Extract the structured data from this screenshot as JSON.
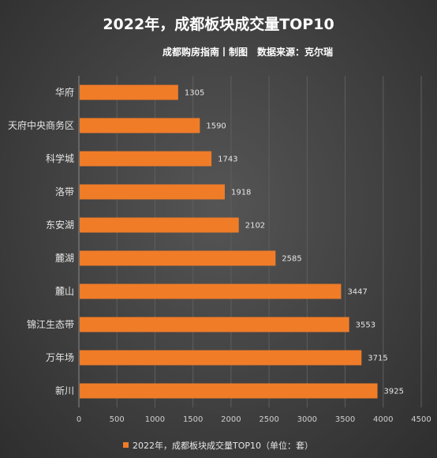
{
  "chart_data": {
    "type": "bar",
    "orientation": "horizontal",
    "title": "2022年，成都板块成交量TOP10",
    "subtitle": "成都购房指南丨制图　数据来源：克尔瑞",
    "categories": [
      "华府",
      "天府中央商务区",
      "科学城",
      "洛带",
      "东安湖",
      "麓湖",
      "麓山",
      "锦江生态带",
      "万年场",
      "新川"
    ],
    "series": [
      {
        "name": "2022年，成都板块成交量TOP10（单位：套）",
        "values": [
          1305,
          1590,
          1743,
          1918,
          2102,
          2585,
          3447,
          3553,
          3715,
          3925
        ],
        "color": "#f07c28"
      }
    ],
    "xlim": [
      0,
      4500
    ],
    "xticks": [
      0,
      500,
      1000,
      1500,
      2000,
      2500,
      3000,
      3500,
      4000,
      4500
    ],
    "grid": "vertical",
    "legend": "bottom"
  }
}
